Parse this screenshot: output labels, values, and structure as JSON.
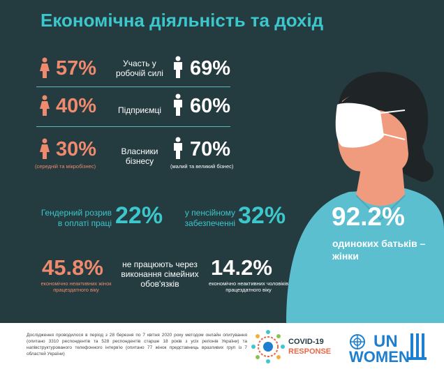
{
  "title": "Економічна діяльність та дохід",
  "rows": [
    {
      "women": "57%",
      "label": "Участь у робочій силі",
      "men": "69%",
      "women_note": "",
      "men_note": ""
    },
    {
      "women": "40%",
      "label": "Підприємці",
      "men": "60%",
      "women_note": "",
      "men_note": ""
    },
    {
      "women": "30%",
      "label": "Власники бізнесу",
      "men": "70%",
      "women_note": "(середній та мікробізнес)",
      "men_note": "(малий та великий бізнес)"
    }
  ],
  "gender_gap": {
    "label": "Гендерний розрив в оплаті праці",
    "value": "22%"
  },
  "pension": {
    "label": "у пенсійному забезпеченні",
    "value": "32%"
  },
  "inactive": {
    "women_value": "45.8%",
    "women_note": "економічно неактивних жінок працездатного віку",
    "label": "не працюють через виконання сімейних обов'язків",
    "men_value": "14.2%",
    "men_note": "економічно неактивних чоловіків працездатного віку"
  },
  "single_parents": {
    "value": "92.2%",
    "label": "одиноких батьків – жінки"
  },
  "footer": {
    "text": "Дослідження проводилося в період з 28 березня по 7 квітня 2020 року методом онлайн опитування (опитано 3310 респондентів та 528 респондентів старше 18 років з усіх регіонів України) та напівструктурованого телефонного інтерв'ю (опитано 77 жінок представниць вразливих груп із 7 областей України)",
    "covid_title": "COVID-19",
    "covid_sub": "RESPONSE",
    "un": "UN",
    "women": "WOMEN"
  },
  "colors": {
    "panel": "#243b40",
    "teal": "#3cc7cc",
    "coral": "#ef8a6e",
    "un_blue": "#1e7fd0"
  },
  "icons": [
    "woman-icon",
    "man-icon",
    "woman-illustration",
    "covid-response-logo",
    "un-emblem-icon",
    "wheat-icon"
  ]
}
